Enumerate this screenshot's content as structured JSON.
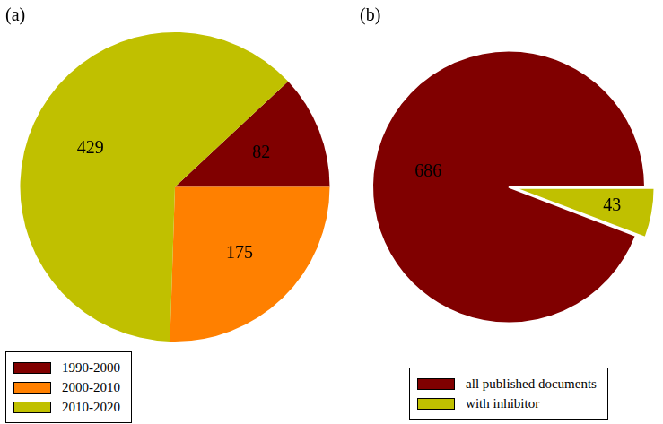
{
  "chart_data": [
    {
      "type": "pie",
      "title": "(a)",
      "categories": [
        "1990-2000",
        "2000-2010",
        "2010-2020"
      ],
      "values": [
        82,
        175,
        429
      ],
      "colors": [
        "#800000",
        "#ff8000",
        "#c0c000"
      ],
      "data_labels": true,
      "legend": "bottom left"
    },
    {
      "type": "pie",
      "title": "(b)",
      "categories": [
        "all published documents",
        "with inhibitor"
      ],
      "values": [
        686,
        43
      ],
      "colors": [
        "#800000",
        "#c0c000"
      ],
      "data_labels": true,
      "legend": "bottom"
    }
  ]
}
